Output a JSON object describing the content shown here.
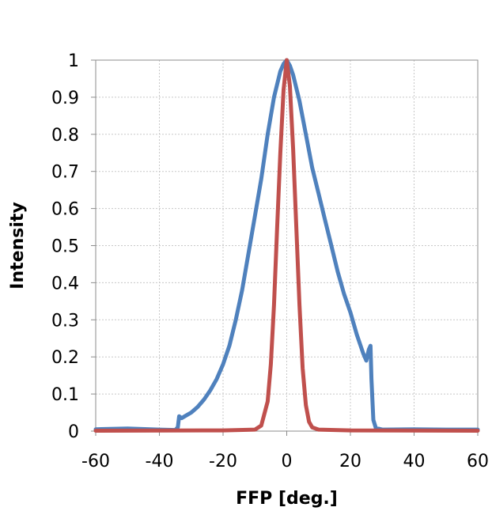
{
  "chart_data": {
    "type": "line",
    "xlabel": "FFP [deg.]",
    "ylabel": "Intensity",
    "xlim": [
      -60,
      60
    ],
    "ylim": [
      0,
      1
    ],
    "xticks": [
      -60,
      -40,
      -20,
      0,
      20,
      40,
      60
    ],
    "yticks": [
      0,
      0.1,
      0.2,
      0.3,
      0.4,
      0.5,
      0.6,
      0.7,
      0.8,
      0.9,
      1
    ],
    "xtick_labels": [
      "-60",
      "-40",
      "-20",
      "0",
      "20",
      "40",
      "60"
    ],
    "ytick_labels": [
      "0",
      "0.1",
      "0.2",
      "0.3",
      "0.4",
      "0.5",
      "0.6",
      "0.7",
      "0.8",
      "0.9",
      "1"
    ],
    "grid": true,
    "legend": "none",
    "series": [
      {
        "color": "#4f81bd",
        "points": [
          [
            -60,
            0.005
          ],
          [
            -50,
            0.007
          ],
          [
            -40,
            0.004
          ],
          [
            -35,
            0.003
          ],
          [
            -34.2,
            0.01
          ],
          [
            -33.8,
            0.04
          ],
          [
            -33,
            0.035
          ],
          [
            -32,
            0.04
          ],
          [
            -30,
            0.05
          ],
          [
            -28,
            0.065
          ],
          [
            -26,
            0.085
          ],
          [
            -24,
            0.11
          ],
          [
            -22,
            0.14
          ],
          [
            -20,
            0.18
          ],
          [
            -18,
            0.23
          ],
          [
            -16,
            0.3
          ],
          [
            -14,
            0.38
          ],
          [
            -12,
            0.48
          ],
          [
            -10,
            0.58
          ],
          [
            -8,
            0.68
          ],
          [
            -6,
            0.8
          ],
          [
            -4,
            0.9
          ],
          [
            -2,
            0.97
          ],
          [
            -1,
            0.99
          ],
          [
            0,
            1.0
          ],
          [
            1,
            0.985
          ],
          [
            2,
            0.96
          ],
          [
            4,
            0.89
          ],
          [
            6,
            0.8
          ],
          [
            8,
            0.71
          ],
          [
            10,
            0.64
          ],
          [
            12,
            0.57
          ],
          [
            14,
            0.5
          ],
          [
            16,
            0.43
          ],
          [
            18,
            0.37
          ],
          [
            20,
            0.32
          ],
          [
            22,
            0.26
          ],
          [
            24,
            0.21
          ],
          [
            25,
            0.19
          ],
          [
            25.8,
            0.22
          ],
          [
            26.3,
            0.23
          ],
          [
            26.6,
            0.14
          ],
          [
            27.2,
            0.03
          ],
          [
            28,
            0.008
          ],
          [
            30,
            0.004
          ],
          [
            40,
            0.005
          ],
          [
            50,
            0.004
          ],
          [
            60,
            0.004
          ]
        ]
      },
      {
        "color": "#c0504d",
        "points": [
          [
            -60,
            0.001
          ],
          [
            -20,
            0.002
          ],
          [
            -10,
            0.004
          ],
          [
            -8,
            0.015
          ],
          [
            -6,
            0.08
          ],
          [
            -5,
            0.18
          ],
          [
            -4,
            0.34
          ],
          [
            -3,
            0.55
          ],
          [
            -2,
            0.75
          ],
          [
            -1,
            0.92
          ],
          [
            0,
            1.0
          ],
          [
            1,
            0.93
          ],
          [
            2,
            0.76
          ],
          [
            3,
            0.55
          ],
          [
            4,
            0.34
          ],
          [
            5,
            0.17
          ],
          [
            6,
            0.07
          ],
          [
            7,
            0.025
          ],
          [
            8,
            0.01
          ],
          [
            10,
            0.004
          ],
          [
            20,
            0.002
          ],
          [
            60,
            0.001
          ]
        ]
      }
    ]
  }
}
